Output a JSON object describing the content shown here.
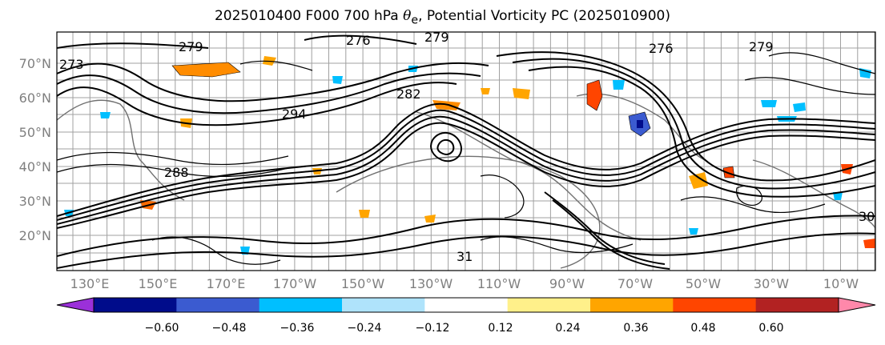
{
  "title": {
    "prefix": "2025010400 F000 700 hPa ",
    "symbol": "θ",
    "subscript": "e",
    "suffix": ", Potential Vorticity PC (2025010900)"
  },
  "map": {
    "latitude_labels": [
      "70°N",
      "60°N",
      "50°N",
      "40°N",
      "30°N",
      "20°N"
    ],
    "longitude_labels": [
      "130°E",
      "150°E",
      "170°E",
      "170°W",
      "150°W",
      "130°W",
      "110°W",
      "90°W",
      "70°W",
      "50°W",
      "30°W",
      "10°W"
    ],
    "contour_labels": [
      "279",
      "276",
      "279",
      "273",
      "282",
      "294",
      "288",
      "276",
      "279",
      "30",
      "31"
    ],
    "colors": {
      "line": "#000000",
      "grid": "#a0a0a0",
      "coast": "#707070"
    }
  },
  "colorbar": {
    "tick_labels": [
      "−0.60",
      "−0.48",
      "−0.36",
      "−0.24",
      "−0.12",
      "0.12",
      "0.24",
      "0.36",
      "0.48",
      "0.60"
    ],
    "bins": [
      {
        "range": "< -0.60",
        "color": "#9b30d9"
      },
      {
        "range": "-0.60 to -0.48",
        "color": "#000c8b"
      },
      {
        "range": "-0.48 to -0.36",
        "color": "#3b5bd0"
      },
      {
        "range": "-0.36 to -0.24",
        "color": "#00bfff"
      },
      {
        "range": "-0.24 to -0.12",
        "color": "#afe3fb"
      },
      {
        "range": "-0.12 to 0.12",
        "color": "#ffffff"
      },
      {
        "range": "0.12 to 0.24",
        "color": "#fff08a"
      },
      {
        "range": "0.24 to 0.36",
        "color": "#ffa500"
      },
      {
        "range": "0.36 to 0.48",
        "color": "#ff4500"
      },
      {
        "range": "0.48 to 0.60",
        "color": "#b22222"
      },
      {
        "range": "> 0.60",
        "color": "#ff88aa"
      }
    ]
  }
}
